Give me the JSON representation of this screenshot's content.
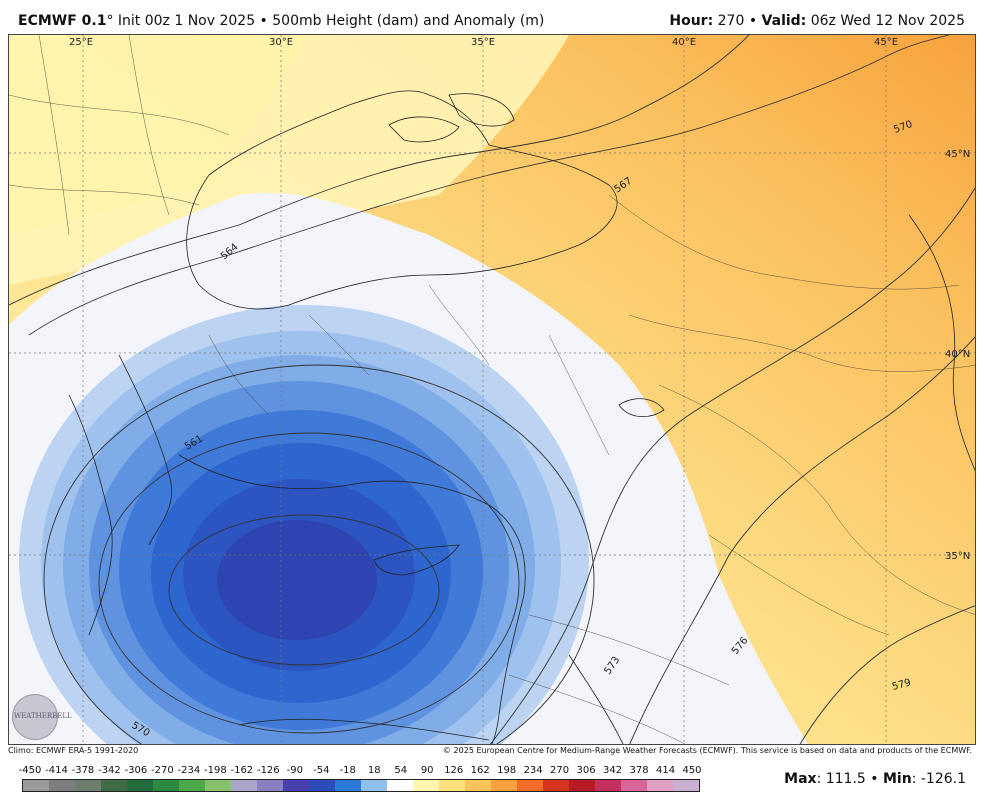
{
  "header": {
    "model_name": "ECMWF 0.1",
    "degree_symbol": "°",
    "init_text": "Init 00z 1 Nov 2025 • 500mb Height (dam) and Anomaly (m)",
    "hour_label": "Hour:",
    "hour_value": "270",
    "sep": "•",
    "valid_label": "Valid:",
    "valid_value": "06z Wed 12 Nov 2025"
  },
  "map": {
    "lon_labels": [
      "25°E",
      "30°E",
      "35°E",
      "40°E",
      "45°E"
    ],
    "lat_labels": [
      "45°N",
      "40°N",
      "35°N"
    ],
    "contour_labels": [
      "564",
      "567",
      "570",
      "561",
      "573",
      "576",
      "579",
      "570"
    ],
    "colors": {
      "anomaly_deep": "#2f3fae",
      "anomaly_blue": "#2b6fd8",
      "anomaly_light": "#90b9ea",
      "near_zero": "#f4f6fb",
      "warm_light": "#fdf3a6",
      "warm_mid": "#fcd77a",
      "warm_strong": "#f7a941"
    },
    "logo_text": "WEATHERBELL"
  },
  "credits": {
    "climo": "Climo: ECMWF ERA-5 1991-2020",
    "copyright": "© 2025 European Centre for Medium-Range Weather Forecasts (ECMWF). This service is based on data and products of the ECMWF."
  },
  "colorbar": {
    "ticks": [
      "-450",
      "-414",
      "-378",
      "-342",
      "-306",
      "-270",
      "-234",
      "-198",
      "-162",
      "-126",
      "-90",
      "-54",
      "-18",
      "18",
      "54",
      "90",
      "126",
      "162",
      "198",
      "234",
      "270",
      "306",
      "342",
      "378",
      "414",
      "450"
    ],
    "colors": [
      "#9b9b9b",
      "#7d7d7d",
      "#6e7d6e",
      "#3f6b47",
      "#236b3a",
      "#2d8a43",
      "#4ea84b",
      "#86c26b",
      "#a9a6c9",
      "#8a7fc0",
      "#4a3fae",
      "#2b4cb9",
      "#2b7ad8",
      "#8fc0ee",
      "#ffffff",
      "#fff7b0",
      "#fde07c",
      "#fcc35a",
      "#f9a13e",
      "#f26c2a",
      "#d8341d",
      "#b81a24",
      "#c4305c",
      "#d8669a",
      "#e0a0c4",
      "#c9b0d0"
    ]
  },
  "stats": {
    "max_label": "Max",
    "max_value": ": 111.5 • ",
    "min_label": "Min",
    "min_value": ": -126.1"
  }
}
